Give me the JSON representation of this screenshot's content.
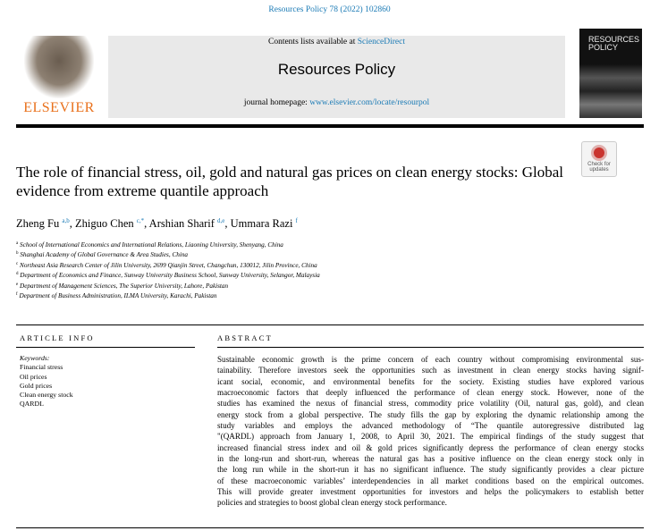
{
  "citation": "Resources Policy 78 (2022) 102860",
  "header": {
    "contents_prefix": "Contents lists available at ",
    "contents_link": "ScienceDirect",
    "journal_title": "Resources Policy",
    "homepage_prefix": "journal homepage: ",
    "homepage_link": "www.elsevier.com/locate/resourpol",
    "publisher_logo": "ELSEVIER",
    "cover_title": "RESOURCES POLICY"
  },
  "check_updates": "Check for updates",
  "title": "The role of financial stress, oil, gold and natural gas prices on clean energy stocks: Global evidence from extreme quantile approach",
  "authors": [
    {
      "name": "Zheng Fu",
      "sup": "a,b"
    },
    {
      "name": "Zhiguo Chen",
      "sup": "c,*"
    },
    {
      "name": "Arshian Sharif",
      "sup": "d,e"
    },
    {
      "name": "Ummara Razi",
      "sup": "f"
    }
  ],
  "affiliations": [
    {
      "key": "a",
      "text": "School of International Economics and International Relations, Liaoning University, Shenyang, China"
    },
    {
      "key": "b",
      "text": "Shanghai Academy of Global Governance & Area Studies, China"
    },
    {
      "key": "c",
      "text": "Northeast Asia Research Center of Jilin University, 2699 Qianjin Street, Changchun, 130012, Jilin Province, China"
    },
    {
      "key": "d",
      "text": "Department of Economics and Finance, Sunway University Business School, Sunway University, Selangor, Malaysia"
    },
    {
      "key": "e",
      "text": "Department of Management Sciences, The Superior University, Lahore, Pakistan"
    },
    {
      "key": "f",
      "text": "Department of Business Administration, ILMA University, Karachi, Pakistan"
    }
  ],
  "article_info": {
    "heading": "ARTICLE INFO",
    "keywords_label": "Keywords:",
    "keywords": [
      "Financial stress",
      "Oil prices",
      "Gold prices",
      "Clean energy stock",
      "QARDL"
    ]
  },
  "abstract": {
    "heading": "ABSTRACT",
    "lines": [
      "Sustainable economic growth is the prime concern of each country without compromising environmental sus-",
      "tainability. Therefore investors seek the opportunities such as investment in clean energy stocks having signif-",
      "icant social, economic, and environmental benefits for the society. Existing studies have explored various",
      "macroeconomic factors that deeply influenced the performance of clean energy stock. However, none of the",
      "studies has examined the nexus of financial stress, commodity price volatility (Oil, natural gas, gold), and clean",
      "energy stock from a global perspective. The study fills the gap by exploring the dynamic relationship among the",
      "study variables and employs the advanced methodology of “The quantile autoregressive distributed lag",
      "\"(QARDL) approach from January 1, 2008, to April 30, 2021. The empirical findings of the study suggest that",
      "increased financial stress index and oil & gold prices significantly depress the performance of clean energy stocks",
      "in the long-run and short-run, whereas the natural gas has a positive influence on the clean energy stock only in",
      "the long run while in the short-run it has no significant influence. The study significantly provides a clear picture",
      "of these macroeconomic variables’ interdependencies in all market conditions based on the empirical outcomes.",
      "This will provide greater investment opportunities for investors and helps the policymakers to establish better",
      "policies and strategies to boost global clean energy stock performance."
    ]
  }
}
